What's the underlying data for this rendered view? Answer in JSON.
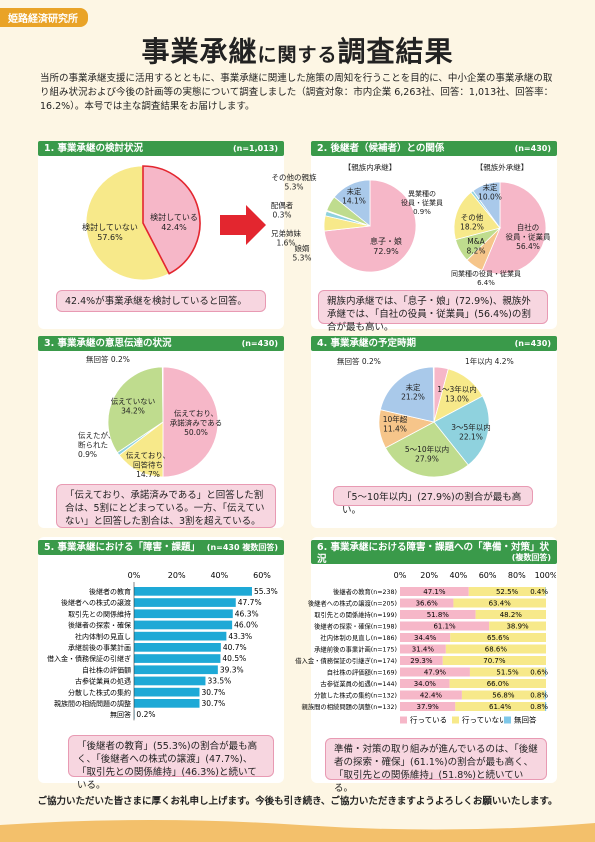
{
  "header": {
    "org": "姫路経済研究所",
    "title_a": "事業承継",
    "title_b": "に関する",
    "title_c": "調査結果",
    "intro": "当所の事業承継支援に活用するとともに、事業承継に関連した施策の周知を行うことを目的に、中小企業の事業承継の取り組み状況および今後の計画等の実態について調査しました（調査対象：市内企業 6,263社、回答：1,013社、回答率：16.2%）。本号では主な調査結果をお届けします。"
  },
  "s1": {
    "title": "1. 事業承継の検討状況",
    "n": "(n=1,013)",
    "slices": [
      {
        "label": "検討している",
        "value": "42.4%"
      },
      {
        "label": "検討していない",
        "value": "57.6%"
      }
    ],
    "note": "42.4%が事業承継を検討していると回答。"
  },
  "s2": {
    "title": "2. 後継者（候補者）との関係",
    "n": "(n=430)",
    "left_title": "【親族内承継】",
    "right_title": "【親族外承継】",
    "left_slices": [
      {
        "label": "未定",
        "value": "14.1%"
      },
      {
        "label": "息子・娘",
        "value": "72.9%"
      },
      {
        "label": "娘婿",
        "value": "5.3%"
      },
      {
        "label": "兄弟姉妹",
        "value": "1.6%"
      },
      {
        "label": "配偶者",
        "value": "0.3%"
      },
      {
        "label": "その他の親族",
        "value": "5.3%"
      }
    ],
    "right_slices": [
      {
        "label": "未定",
        "value": "10.0%"
      },
      {
        "label": "自社の役員・従業員",
        "value": "56.4%"
      },
      {
        "label": "同業種の役員・従業員",
        "value": "6.4%"
      },
      {
        "label": "M&A",
        "value": "8.2%"
      },
      {
        "label": "その他",
        "value": "18.2%"
      },
      {
        "label": "異業種の役員・従業員",
        "value": "0.9%"
      }
    ],
    "note": "親族内承継では、「息子・娘」(72.9%)、親族外承継では、「自社の役員・従業員」(56.4%)の割合が最も高い。"
  },
  "s3": {
    "title": "3. 事業承継の意思伝達の状況",
    "n": "(n=430)",
    "slices": [
      {
        "label": "伝えており、承認済みである",
        "value": "50.0%"
      },
      {
        "label": "伝えており、回答待ち",
        "value": "14.7%"
      },
      {
        "label": "伝えたが、断られた",
        "value": "0.9%"
      },
      {
        "label": "伝えていない",
        "value": "34.2%"
      },
      {
        "label": "無回答",
        "value": "0.2%"
      }
    ],
    "note": "「伝えており、承諾済みである」と回答した割合は、5割にとどまっている。一方、「伝えていない」と回答した割合は、3割を超えている。"
  },
  "s4": {
    "title": "4. 事業承継の予定時期",
    "n": "(n=430)",
    "slices": [
      {
        "label": "1年以内",
        "value": "4.2%"
      },
      {
        "label": "1〜3年以内",
        "value": "13.0%"
      },
      {
        "label": "3〜5年以内",
        "value": "22.1%"
      },
      {
        "label": "5〜10年以内",
        "value": "27.9%"
      },
      {
        "label": "10年超",
        "value": "11.4%"
      },
      {
        "label": "未定",
        "value": "21.2%"
      },
      {
        "label": "無回答",
        "value": "0.2%"
      }
    ],
    "note": "「5〜10年以内」(27.9%)の割合が最も高い。"
  },
  "s5": {
    "title": "5. 事業承継における「障害・課題」",
    "n": "(n=430 複数回答)",
    "axis": [
      "0%",
      "20%",
      "40%",
      "60%"
    ],
    "note": "「後継者の教育」(55.3%)の割合が最も高く、「後継者への株式の譲渡」(47.7%)、「取引先との関係維持」(46.3%)と続いている。"
  },
  "s6": {
    "title": "6. 事業承継における障害・課題への「準備・対策」状況",
    "n": "(複数回答)",
    "axis": [
      "0%",
      "20%",
      "40%",
      "60%",
      "80%",
      "100%"
    ],
    "legend": [
      "行っている",
      "行っていない",
      "無回答"
    ],
    "note": "準備・対策の取り組みが進んでいるのは、「後継者の探索・確保」(61.1%)の割合が最も高く、「取引先との関係維持」(51.8%)と続いている。"
  },
  "footer": "ご協力いただいた皆さまに厚くお礼申し上げます。今後も引き続き、ご協力いただきますようよろしくお願いいたします。",
  "chart_data": [
    {
      "type": "pie",
      "title": "1. 事業承継の検討状況",
      "categories": [
        "検討している",
        "検討していない"
      ],
      "values": [
        42.4,
        57.6
      ]
    },
    {
      "type": "pie",
      "title": "【親族内承継】",
      "categories": [
        "息子・娘",
        "娘婿",
        "兄弟姉妹",
        "配偶者",
        "その他の親族",
        "未定"
      ],
      "values": [
        72.9,
        5.3,
        1.6,
        0.3,
        5.3,
        14.1
      ]
    },
    {
      "type": "pie",
      "title": "【親族外承継】",
      "categories": [
        "自社の役員・従業員",
        "同業種の役員・従業員",
        "M&A",
        "その他",
        "異業種の役員・従業員",
        "未定"
      ],
      "values": [
        56.4,
        6.4,
        8.2,
        18.2,
        0.9,
        10.0
      ]
    },
    {
      "type": "pie",
      "title": "3. 事業承継の意思伝達の状況",
      "categories": [
        "伝えており、承認済みである",
        "伝えており、回答待ち",
        "伝えたが、断られた",
        "伝えていない",
        "無回答"
      ],
      "values": [
        50.0,
        14.7,
        0.9,
        34.2,
        0.2
      ]
    },
    {
      "type": "pie",
      "title": "4. 事業承継の予定時期",
      "categories": [
        "1年以内",
        "1〜3年以内",
        "3〜5年以内",
        "5〜10年以内",
        "10年超",
        "未定",
        "無回答"
      ],
      "values": [
        4.2,
        13.0,
        22.1,
        27.9,
        11.4,
        21.2,
        0.2
      ]
    },
    {
      "type": "bar",
      "title": "5. 事業承継における「障害・課題」",
      "categories": [
        "後継者の教育",
        "後継者への株式の譲渡",
        "取引先との関係維持",
        "後継者の探索・確保",
        "社内体制の見直し",
        "承継前後の事業計画",
        "借入金・債務保証の引継ぎ",
        "自社株の評価額",
        "古参従業員の処遇",
        "分散した株式の集約",
        "親族間の相続問題の調整",
        "無回答"
      ],
      "values": [
        55.3,
        47.7,
        46.3,
        46.0,
        43.3,
        40.7,
        40.5,
        39.3,
        33.5,
        30.7,
        30.7,
        0.2
      ],
      "xlim": [
        0,
        60
      ]
    },
    {
      "type": "bar",
      "title": "6. 事業承継における障害・課題への「準備・対策」状況",
      "categories": [
        "後継者の教育(n=238)",
        "後継者への株式の譲渡(n=205)",
        "取引先との関係維持(n=199)",
        "後継者の探索・確保(n=198)",
        "社内体制の見直し(n=186)",
        "承継前後の事業計画(n=175)",
        "借入金・債務保証の引継ぎ(n=174)",
        "自社株の評価額(n=169)",
        "古参従業員の処遇(n=144)",
        "分散した株式の集約(n=132)",
        "親族間の相続問題の調整(n=132)"
      ],
      "series": [
        {
          "name": "行っている",
          "values": [
            47.1,
            36.6,
            51.8,
            61.1,
            34.4,
            31.4,
            29.3,
            47.9,
            34.0,
            42.4,
            37.9
          ]
        },
        {
          "name": "行っていない",
          "values": [
            52.5,
            63.4,
            48.2,
            38.9,
            65.6,
            68.6,
            70.7,
            51.5,
            66.0,
            56.8,
            61.4
          ]
        },
        {
          "name": "無回答",
          "values": [
            0.4,
            0,
            0,
            0,
            0,
            0,
            0,
            0.6,
            0,
            0.8,
            0.8
          ]
        }
      ],
      "xlim": [
        0,
        100
      ],
      "stacked": true
    }
  ],
  "colors": {
    "pink": "#f6b7c8",
    "yellow": "#f7e98a",
    "blue": "#a9c9ea",
    "green": "#bfdc8e",
    "cyan": "#8fd2de",
    "orange": "#f6c58a",
    "barblue": "#1ea9d6",
    "red": "#e3262f"
  }
}
